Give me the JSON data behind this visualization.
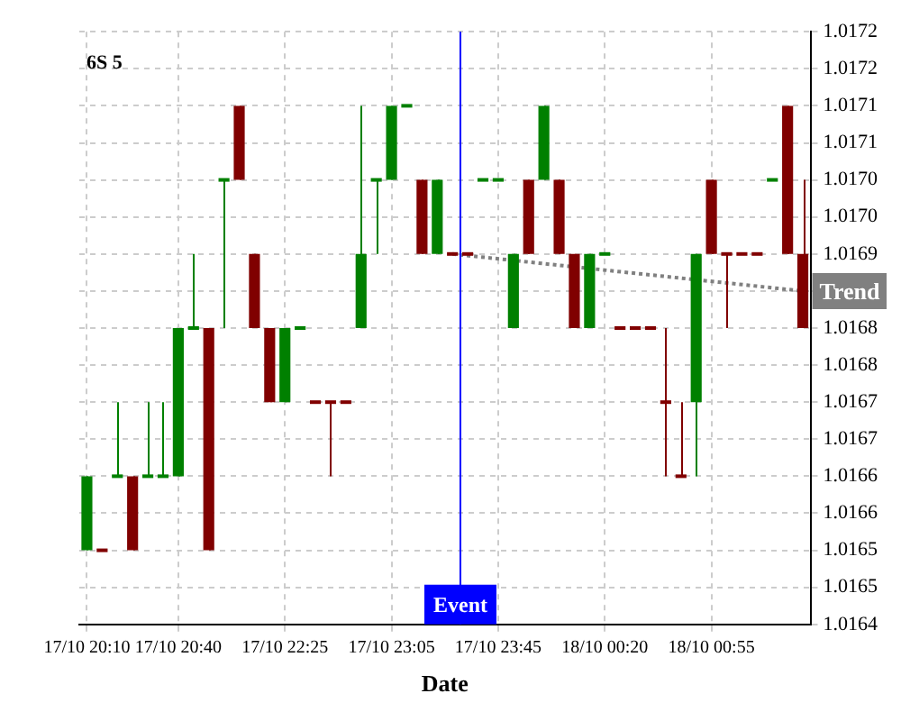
{
  "chart_data": {
    "type": "candlestick",
    "title": "6S 5",
    "xlabel": "Date",
    "categories": [
      "17/10 20:10",
      null,
      null,
      null,
      null,
      null,
      "17/10 20:40",
      null,
      null,
      null,
      null,
      null,
      null,
      "17/10 22:25",
      null,
      null,
      null,
      null,
      null,
      null,
      "17/10 23:05",
      null,
      null,
      null,
      null,
      null,
      null,
      "17/10 23:45",
      null,
      null,
      null,
      null,
      null,
      null,
      "18/10 00:20",
      null,
      null,
      null,
      null,
      null,
      null,
      "18/10 00:55",
      null,
      null,
      null,
      null,
      null,
      null
    ],
    "ohlc": [
      [
        1.0165,
        1.0166,
        1.0165,
        1.0166
      ],
      [
        1.0165,
        1.0165,
        1.0165,
        1.0165
      ],
      [
        1.0166,
        1.0167,
        1.0166,
        1.0166
      ],
      [
        1.0166,
        1.0166,
        1.0165,
        1.0165
      ],
      [
        1.0166,
        1.0167,
        1.0166,
        1.0166
      ],
      [
        1.0166,
        1.0167,
        1.0166,
        1.0166
      ],
      [
        1.0166,
        1.0168,
        1.0166,
        1.0168
      ],
      [
        1.0168,
        1.0169,
        1.0168,
        1.0168
      ],
      [
        1.0168,
        1.0168,
        1.0165,
        1.0165
      ],
      [
        1.017,
        1.017,
        1.0168,
        1.017
      ],
      [
        1.0171,
        1.0171,
        1.017,
        1.017
      ],
      [
        1.0169,
        1.0169,
        1.0168,
        1.0168
      ],
      [
        1.0168,
        1.0168,
        1.0167,
        1.0167
      ],
      [
        1.0167,
        1.0168,
        1.0167,
        1.0168
      ],
      [
        1.0168,
        1.0168,
        1.0168,
        1.0168
      ],
      [
        1.0167,
        1.0167,
        1.0167,
        1.0167
      ],
      [
        1.0167,
        1.0167,
        1.0166,
        1.0167
      ],
      [
        1.0167,
        1.0167,
        1.0167,
        1.0167
      ],
      [
        1.0168,
        1.0171,
        1.0168,
        1.0169
      ],
      [
        1.017,
        1.017,
        1.0169,
        1.017
      ],
      [
        1.017,
        1.0171,
        1.017,
        1.0171
      ],
      [
        1.0171,
        1.0171,
        1.0171,
        1.0171
      ],
      [
        1.017,
        1.017,
        1.0169,
        1.0169
      ],
      [
        1.0169,
        1.017,
        1.0169,
        1.017
      ],
      [
        1.0169,
        1.0169,
        1.0169,
        1.0169
      ],
      [
        1.0169,
        1.0169,
        1.0169,
        1.0169
      ],
      [
        1.017,
        1.017,
        1.017,
        1.017
      ],
      [
        1.017,
        1.017,
        1.017,
        1.017
      ],
      [
        1.0168,
        1.0169,
        1.0168,
        1.0169
      ],
      [
        1.017,
        1.017,
        1.0169,
        1.0169
      ],
      [
        1.017,
        1.0171,
        1.017,
        1.0171
      ],
      [
        1.017,
        1.017,
        1.0169,
        1.0169
      ],
      [
        1.0169,
        1.0169,
        1.0168,
        1.0168
      ],
      [
        1.0168,
        1.0169,
        1.0168,
        1.0169
      ],
      [
        1.0169,
        1.0169,
        1.0169,
        1.0169
      ],
      [
        1.0168,
        1.0168,
        1.0168,
        1.0168
      ],
      [
        1.0168,
        1.0168,
        1.0168,
        1.0168
      ],
      [
        1.0168,
        1.0168,
        1.0168,
        1.0168
      ],
      [
        1.0167,
        1.0168,
        1.0166,
        1.0167
      ],
      [
        1.0166,
        1.0167,
        1.0166,
        1.0166
      ],
      [
        1.0167,
        1.0169,
        1.0166,
        1.0169
      ],
      [
        1.017,
        1.017,
        1.0169,
        1.0169
      ],
      [
        1.0169,
        1.0169,
        1.0168,
        1.0169
      ],
      [
        1.0169,
        1.0169,
        1.0169,
        1.0169
      ],
      [
        1.0169,
        1.0169,
        1.0169,
        1.0169
      ],
      [
        1.017,
        1.017,
        1.017,
        1.017
      ],
      [
        1.0171,
        1.0171,
        1.0169,
        1.0169
      ],
      [
        1.0169,
        1.017,
        1.0168,
        1.0168
      ]
    ],
    "colors": [
      "#008000",
      "#800000",
      "#008000",
      "#800000",
      "#008000",
      "#008000",
      "#008000",
      "#008000",
      "#800000",
      "#008000",
      "#800000",
      "#800000",
      "#800000",
      "#008000",
      "#008000",
      "#800000",
      "#800000",
      "#800000",
      "#008000",
      "#008000",
      "#008000",
      "#008000",
      "#800000",
      "#008000",
      "#800000",
      "#800000",
      "#008000",
      "#008000",
      "#008000",
      "#800000",
      "#008000",
      "#800000",
      "#800000",
      "#008000",
      "#008000",
      "#800000",
      "#800000",
      "#800000",
      "#800000",
      "#800000",
      "#008000",
      "#800000",
      "#800000",
      "#800000",
      "#800000",
      "#008000",
      "#800000",
      "#800000"
    ],
    "series": [
      {
        "name": "Trend",
        "type": "line",
        "color": "#808080",
        "line_style": "dotted",
        "values": [
          null,
          null,
          null,
          null,
          null,
          null,
          null,
          null,
          null,
          null,
          null,
          null,
          null,
          null,
          null,
          null,
          null,
          null,
          null,
          null,
          null,
          null,
          null,
          null,
          1.0169,
          null,
          null,
          null,
          null,
          null,
          null,
          null,
          null,
          null,
          null,
          null,
          null,
          null,
          null,
          null,
          null,
          null,
          null,
          null,
          null,
          null,
          null,
          1.01685
        ]
      }
    ],
    "annotations": [
      "Event"
    ],
    "ylim": [
      1.0164,
      1.0172
    ],
    "yticks": [
      1.0164,
      {
        "value": 1.01645,
        "label": "1.0165"
      },
      1.0165,
      {
        "value": 1.01655,
        "label": "1.0166"
      },
      1.0166,
      {
        "value": 1.01665,
        "label": "1.0167"
      },
      1.0167,
      {
        "value": 1.01675,
        "label": "1.0168"
      },
      1.0168,
      {
        "value": 1.01685,
        "label": null
      },
      1.0169,
      {
        "value": 1.01695,
        "label": "1.0170"
      },
      {
        "value": 1.017,
        "label": "1.0170"
      },
      {
        "value": 1.01705,
        "label": "1.0171"
      },
      1.0171,
      {
        "value": 1.01715,
        "label": "1.0172"
      },
      1.0172
    ],
    "grid": true,
    "legend": false
  }
}
